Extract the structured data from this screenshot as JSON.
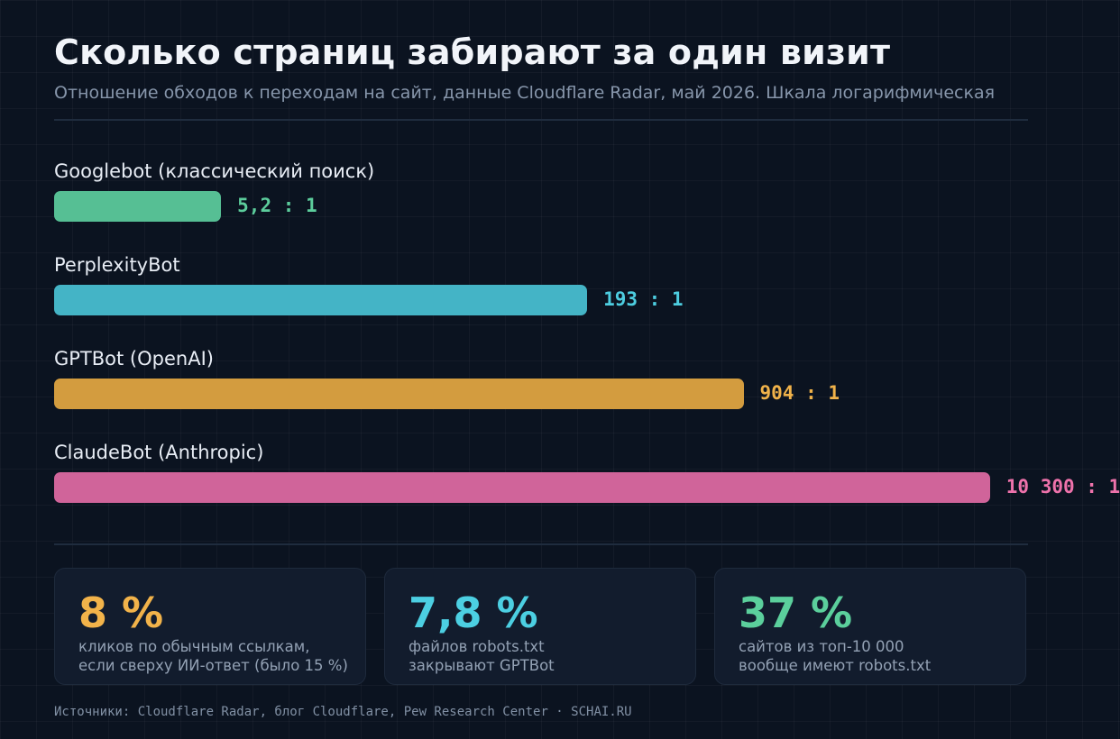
{
  "title": "Сколько страниц забирают за один визит",
  "subtitle": "Отношение обходов к переходам на сайт, данные Cloudflare Radar, май 2026. Шкала логарифмическая",
  "chart_data": {
    "type": "bar",
    "orientation": "horizontal",
    "scale": "log",
    "categories": [
      "Googlebot (классический поиск)",
      "PerplexityBot",
      "GPTBot (OpenAI)",
      "ClaudeBot (Anthropic)"
    ],
    "values": [
      5.2,
      193,
      904,
      10300
    ],
    "value_labels": [
      "5,2 : 1",
      "193 : 1",
      "904 : 1",
      "10 300 : 1"
    ],
    "colors": [
      "#56bf94",
      "#44b4c6",
      "#d39c3f",
      "#d0649a"
    ],
    "label_colors": [
      "#5ccd9c",
      "#4dcde0",
      "#f0b24a",
      "#ee72ab"
    ],
    "xlim": [
      1,
      15000
    ]
  },
  "stats": [
    {
      "value": "8 %",
      "color": "#f2b34a",
      "lines": [
        "кликов по обычным ссылкам,",
        "если сверху ИИ-ответ (было 15 %)"
      ]
    },
    {
      "value": "7,8 %",
      "color": "#4ccfe2",
      "lines": [
        "файлов robots.txt",
        "закрывают GPTBot"
      ]
    },
    {
      "value": "37 %",
      "color": "#5bcf9c",
      "lines": [
        "сайтов из топ-10 000",
        "вообще имеют robots.txt"
      ]
    }
  ],
  "sources": "Источники: Cloudflare Radar, блог Cloudflare, Pew Research Center · SCHAI.RU"
}
